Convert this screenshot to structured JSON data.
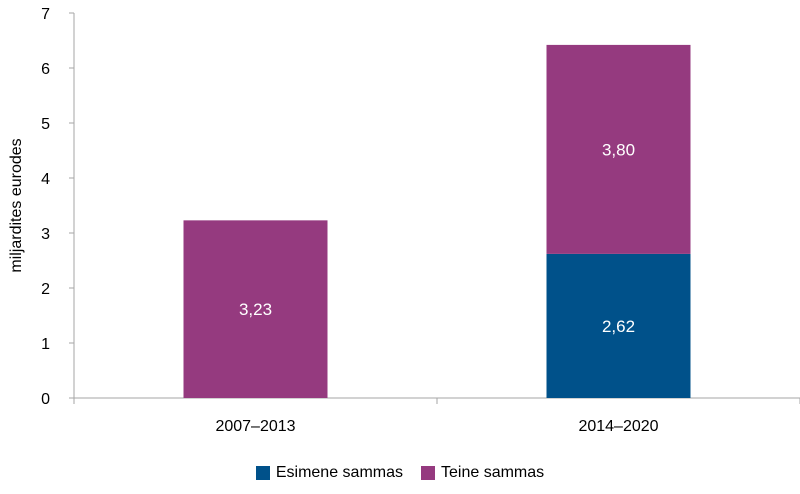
{
  "chart_data": {
    "type": "bar",
    "stacked": true,
    "categories": [
      "2007–2013",
      "2014–2020"
    ],
    "series": [
      {
        "name": "Esimene sammas",
        "color": "#00518a",
        "values": [
          0,
          2.62
        ],
        "labels": [
          "",
          "2,62"
        ]
      },
      {
        "name": "Teine sammas",
        "color": "#953a7f",
        "values": [
          3.23,
          3.8
        ],
        "labels": [
          "3,23",
          "3,80"
        ]
      }
    ],
    "ylabel": "miljardites eurodes",
    "ylim": [
      0,
      7
    ],
    "yticks": [
      0,
      1,
      2,
      3,
      4,
      5,
      6,
      7
    ],
    "grid": false,
    "legend_position": "bottom"
  }
}
